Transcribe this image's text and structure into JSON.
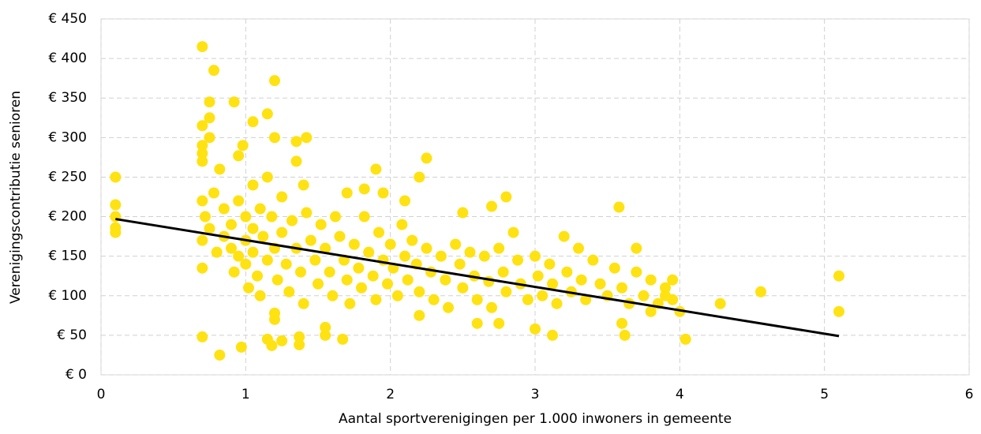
{
  "chart_data": {
    "type": "scatter",
    "x_label": "Aantal sportverenigingen per 1.000 inwoners in gemeente",
    "y_label": "Verenigingscontributie senioren",
    "color": "#FFE211",
    "x": [
      0.1,
      0.1,
      0.1,
      0.1,
      0.1,
      0.7,
      0.78,
      1.2,
      0.75,
      0.92,
      1.15,
      0.75,
      1.05,
      0.7,
      1.35,
      1.42,
      1.2,
      0.98,
      0.7,
      0.75,
      0.7,
      0.95,
      0.7,
      1.35,
      2.25,
      0.82,
      1.9,
      2.2,
      1.15,
      0.7,
      0.82,
      0.97,
      1.15,
      1.18,
      1.25,
      1.37,
      1.37,
      1.55,
      1.67,
      1.55,
      3.12,
      3.62,
      4.04,
      4.28,
      4.56,
      5.1,
      5.1,
      3.58,
      2.8,
      2.5,
      2.7,
      1.7,
      1.95,
      2.1,
      1.82,
      1.4,
      1.05,
      0.7,
      0.8,
      1.2,
      1.2,
      3.7,
      3.95,
      4.0,
      3.8,
      3.6,
      3.9,
      2.6,
      2.75,
      3.0,
      2.2,
      0.7,
      0.72,
      0.75,
      0.7,
      0.78,
      0.85,
      0.85,
      0.9,
      0.9,
      0.92,
      0.95,
      0.95,
      1.0,
      1.0,
      1.0,
      1.02,
      1.05,
      1.05,
      1.08,
      1.1,
      1.1,
      1.12,
      1.15,
      1.18,
      1.2,
      1.22,
      1.25,
      1.25,
      1.28,
      1.3,
      1.32,
      1.35,
      1.38,
      1.4,
      1.42,
      1.45,
      1.48,
      1.5,
      1.52,
      1.55,
      1.58,
      1.6,
      1.62,
      1.65,
      1.68,
      1.7,
      1.72,
      1.75,
      1.78,
      1.8,
      1.82,
      1.85,
      1.88,
      1.9,
      1.92,
      1.95,
      1.98,
      2.0,
      2.02,
      2.05,
      2.08,
      2.1,
      2.12,
      2.15,
      2.18,
      2.2,
      2.25,
      2.28,
      2.3,
      2.35,
      2.38,
      2.4,
      2.45,
      2.48,
      2.5,
      2.55,
      2.58,
      2.6,
      2.65,
      2.68,
      2.7,
      2.75,
      2.78,
      2.8,
      2.85,
      2.88,
      2.9,
      2.95,
      3.0,
      3.02,
      3.05,
      3.1,
      3.12,
      3.15,
      3.2,
      3.22,
      3.25,
      3.3,
      3.32,
      3.35,
      3.4,
      3.45,
      3.5,
      3.55,
      3.6,
      3.65,
      3.7,
      3.75,
      3.8,
      3.85,
      3.9,
      3.95
    ],
    "values": [
      250,
      215,
      200,
      186,
      180,
      415,
      385,
      372,
      345,
      345,
      330,
      325,
      320,
      315,
      295,
      300,
      300,
      290,
      290,
      300,
      280,
      277,
      270,
      270,
      274,
      260,
      260,
      250,
      250,
      48,
      25,
      35,
      45,
      37,
      43,
      48,
      38,
      50,
      45,
      60,
      50,
      50,
      45,
      90,
      105,
      125,
      80,
      212,
      225,
      205,
      213,
      230,
      230,
      220,
      235,
      240,
      240,
      135,
      155,
      70,
      78,
      160,
      120,
      80,
      80,
      65,
      100,
      65,
      65,
      58,
      75,
      220,
      200,
      185,
      170,
      230,
      210,
      175,
      160,
      190,
      130,
      220,
      150,
      200,
      170,
      140,
      110,
      185,
      155,
      125,
      210,
      100,
      175,
      145,
      200,
      160,
      120,
      225,
      180,
      140,
      105,
      195,
      160,
      130,
      90,
      205,
      170,
      145,
      115,
      190,
      160,
      130,
      100,
      200,
      175,
      145,
      120,
      90,
      165,
      135,
      110,
      200,
      155,
      125,
      95,
      180,
      145,
      115,
      165,
      135,
      100,
      190,
      150,
      120,
      170,
      140,
      105,
      160,
      130,
      95,
      150,
      120,
      85,
      165,
      140,
      110,
      155,
      125,
      95,
      150,
      118,
      85,
      160,
      130,
      105,
      180,
      145,
      115,
      95,
      150,
      125,
      100,
      140,
      115,
      90,
      175,
      130,
      105,
      160,
      120,
      95,
      145,
      115,
      100,
      135,
      110,
      90,
      130,
      100,
      120,
      90,
      110,
      95
    ],
    "trendline": {
      "x": [
        0.1,
        5.1
      ],
      "values": [
        197,
        49
      ],
      "color": "#000000"
    },
    "xlim": [
      0,
      6
    ],
    "xticks": [
      0,
      1,
      2,
      3,
      4,
      5,
      6
    ],
    "ylim": [
      0,
      450
    ],
    "yticks": [
      {
        "value": 0,
        "label": "€ 0"
      },
      {
        "value": 50,
        "label": "€ 50"
      },
      {
        "value": 100,
        "label": "€ 100"
      },
      {
        "value": 150,
        "label": "€ 150"
      },
      {
        "value": 200,
        "label": "€ 200"
      },
      {
        "value": 250,
        "label": "€ 250"
      },
      {
        "value": 300,
        "label": "€ 300"
      },
      {
        "value": 350,
        "label": "€ 350"
      },
      {
        "value": 400,
        "label": "€ 400"
      },
      {
        "value": 450,
        "label": "€ 450"
      }
    ],
    "grid": true
  }
}
